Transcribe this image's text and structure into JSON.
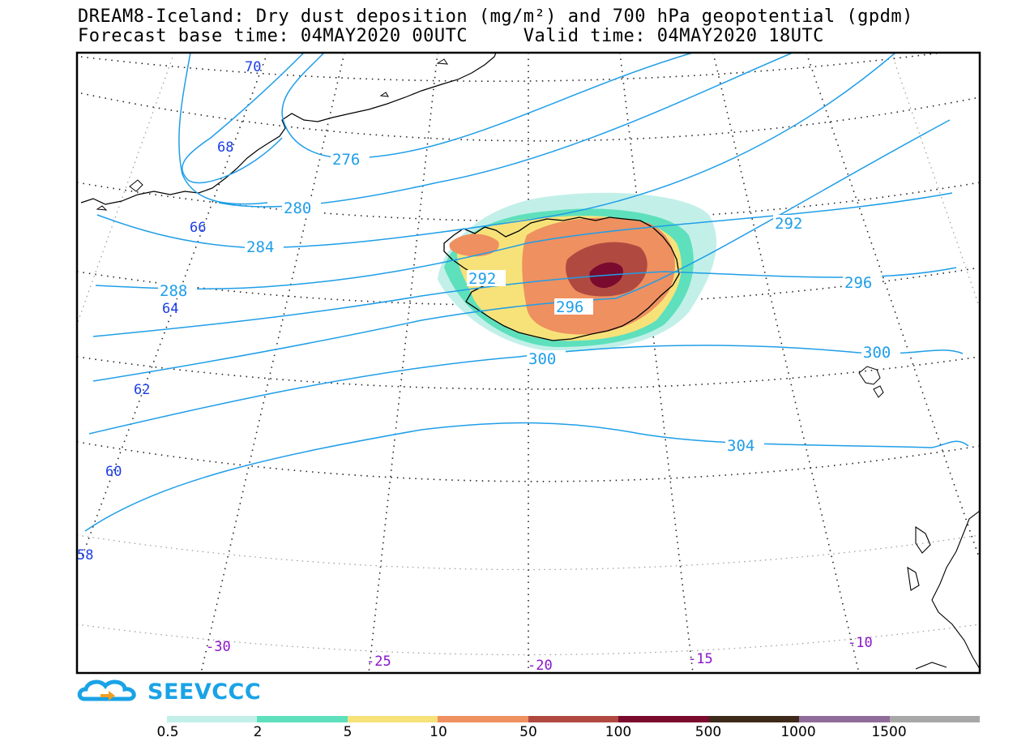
{
  "header": {
    "title_line1": "DREAM8-Iceland: Dry dust deposition (mg/m²) and 700 hPa geopotential (gpdm)",
    "title_line2": "Forecast base time: 04MAY2020 00UTC     Valid time: 04MAY2020 18UTC"
  },
  "map": {
    "region": "Iceland",
    "field": "Dry dust deposition",
    "unit": "mg/m²",
    "contour_field": "700 hPa geopotential (gpdm)",
    "contour_labels": [
      "276",
      "280",
      "284",
      "288",
      "292",
      "292",
      "296",
      "296",
      "300",
      "300",
      "304"
    ],
    "latitude_labels": [
      "70",
      "68",
      "66",
      "64",
      "62",
      "60",
      "58"
    ],
    "longitude_labels": [
      "-30",
      "-25",
      "-20",
      "-15",
      "-10"
    ],
    "colors": {
      "contour": "#1f9ee8",
      "lat_label": "#1a3ee6",
      "lon_label": "#8a14c8"
    }
  },
  "logo": {
    "text": "SEEVCCC",
    "icon": "cloud-arrow-icon",
    "color": "#1aa3e6"
  },
  "legend": {
    "labels": [
      "0.5",
      "2",
      "5",
      "10",
      "50",
      "100",
      "500",
      "1000",
      "1500"
    ],
    "colors": [
      "#c2f0e9",
      "#5ee0bc",
      "#f7e27a",
      "#ee9060",
      "#b04a40",
      "#7a0a2e",
      "#3d2a1a",
      "#906c9a",
      "#a8a8a8"
    ]
  }
}
